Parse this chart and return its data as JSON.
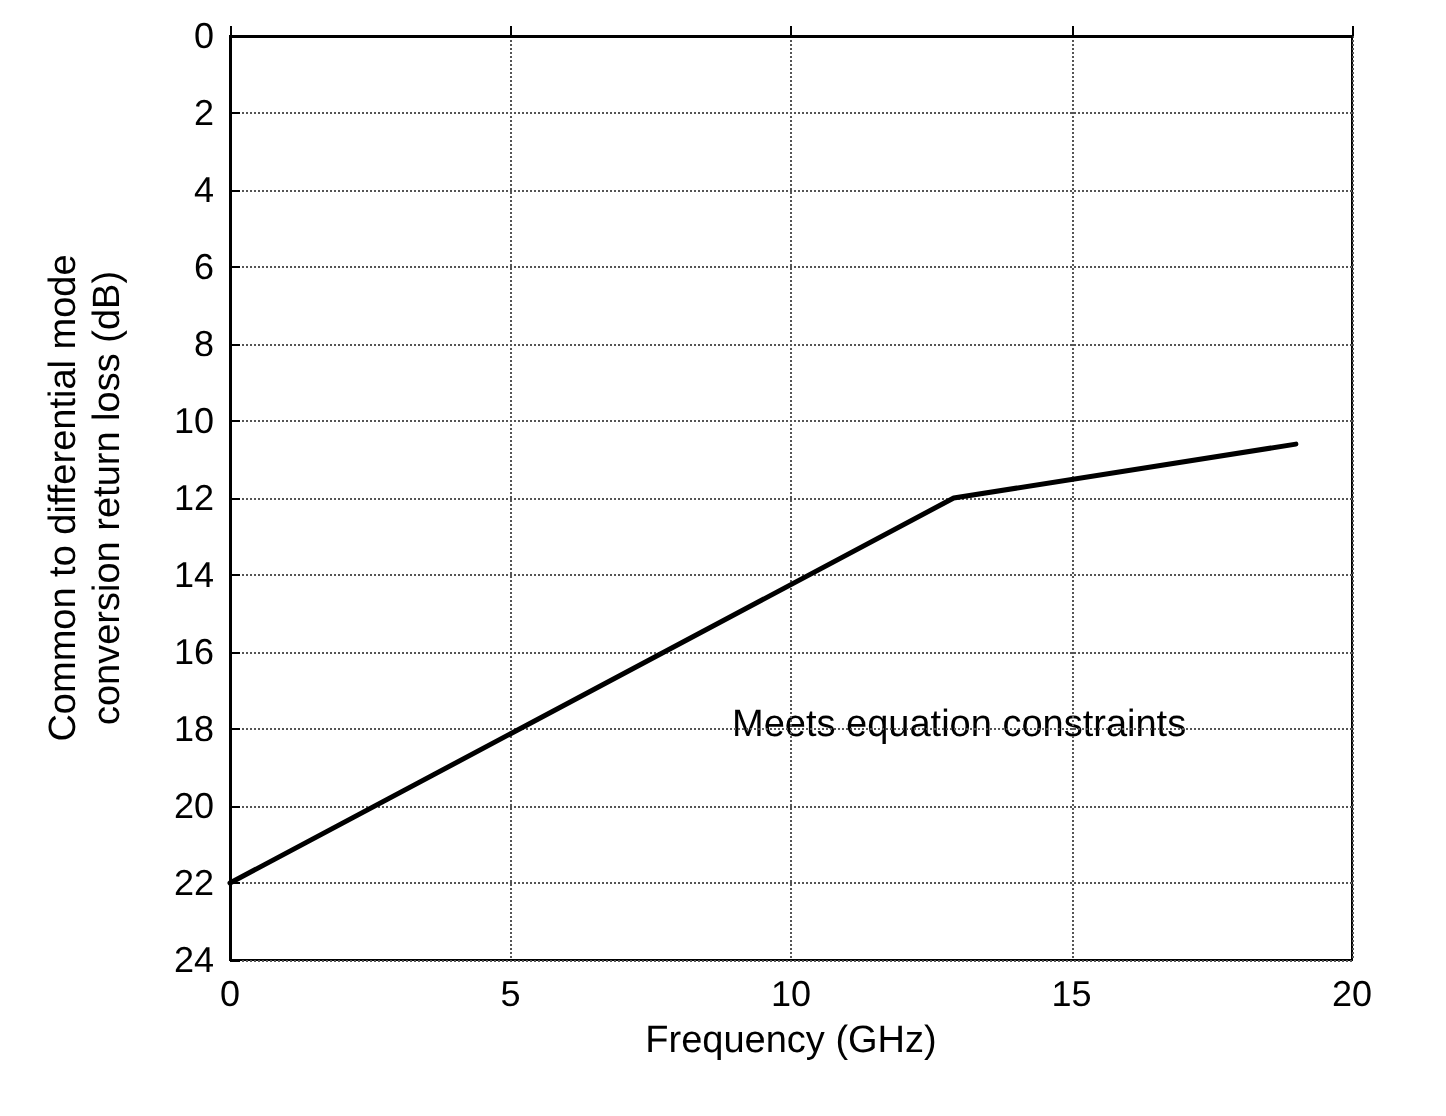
{
  "chart_data": {
    "type": "line",
    "xlabel": "Frequency (GHz)",
    "ylabel": "Common to differential mode\nconversion return loss (dB)",
    "x": [
      0,
      12.9,
      19
    ],
    "series": [
      {
        "color": "#000000",
        "values": [
          22,
          12,
          10.6
        ]
      }
    ],
    "xlim": [
      0,
      20
    ],
    "xticks": [
      0,
      5,
      10,
      15,
      20
    ],
    "ylim": [
      24,
      0
    ],
    "yticks": [
      0,
      2,
      4,
      6,
      8,
      10,
      12,
      14,
      16,
      18,
      20,
      22,
      24
    ],
    "grid": true,
    "marker": "none",
    "line_style": "solid",
    "annotations": [
      "Meets equation constraints"
    ]
  }
}
